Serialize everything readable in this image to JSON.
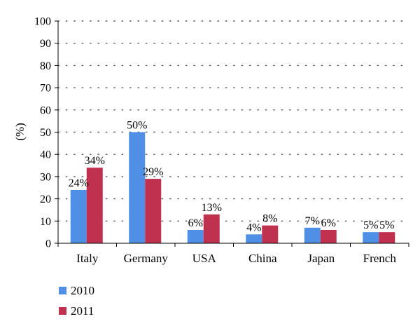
{
  "chart_data": {
    "type": "bar",
    "categories": [
      "Italy",
      "Germany",
      "USA",
      "China",
      "Japan",
      "French"
    ],
    "series": [
      {
        "name": "2010",
        "values": [
          24,
          50,
          6,
          4,
          7,
          5
        ],
        "labels": [
          "24%",
          "50%",
          "6%",
          "4%",
          "7%",
          "5%"
        ],
        "color": "#4f8fe6"
      },
      {
        "name": "2011",
        "values": [
          34,
          29,
          13,
          8,
          6,
          5
        ],
        "labels": [
          "34%",
          "29%",
          "13%",
          "8%",
          "6%",
          "5%"
        ],
        "color": "#c0304f"
      }
    ],
    "ylabel": "(%)",
    "ylim": [
      0,
      100
    ],
    "yticks": [
      0,
      10,
      20,
      30,
      40,
      50,
      60,
      70,
      80,
      90,
      100
    ],
    "grid": "dotted-horizontal",
    "legend": "bottom-left"
  }
}
